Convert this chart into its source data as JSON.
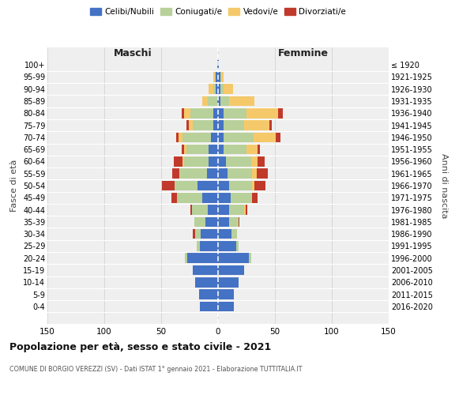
{
  "age_groups": [
    "0-4",
    "5-9",
    "10-14",
    "15-19",
    "20-24",
    "25-29",
    "30-34",
    "35-39",
    "40-44",
    "45-49",
    "50-54",
    "55-59",
    "60-64",
    "65-69",
    "70-74",
    "75-79",
    "80-84",
    "85-89",
    "90-94",
    "95-99",
    "100+"
  ],
  "birth_years": [
    "2016-2020",
    "2011-2015",
    "2006-2010",
    "2001-2005",
    "1996-2000",
    "1991-1995",
    "1986-1990",
    "1981-1985",
    "1976-1980",
    "1971-1975",
    "1966-1970",
    "1961-1965",
    "1956-1960",
    "1951-1955",
    "1946-1950",
    "1941-1945",
    "1936-1940",
    "1931-1935",
    "1926-1930",
    "1921-1925",
    "≤ 1920"
  ],
  "maschi": {
    "celibi": [
      16,
      17,
      20,
      22,
      27,
      16,
      15,
      11,
      9,
      14,
      18,
      10,
      8,
      8,
      6,
      4,
      4,
      1,
      2,
      2,
      1
    ],
    "coniugati": [
      0,
      0,
      0,
      0,
      2,
      3,
      5,
      10,
      14,
      22,
      20,
      23,
      22,
      20,
      25,
      18,
      20,
      8,
      2,
      1,
      0
    ],
    "vedovi": [
      0,
      0,
      0,
      0,
      0,
      0,
      0,
      0,
      0,
      0,
      0,
      1,
      1,
      2,
      4,
      4,
      6,
      5,
      4,
      1,
      0
    ],
    "divorziati": [
      0,
      0,
      0,
      0,
      0,
      0,
      2,
      0,
      1,
      5,
      11,
      6,
      8,
      2,
      2,
      2,
      2,
      0,
      0,
      0,
      0
    ]
  },
  "femmine": {
    "nubili": [
      14,
      14,
      18,
      23,
      27,
      16,
      12,
      10,
      10,
      11,
      10,
      8,
      7,
      5,
      5,
      5,
      5,
      2,
      2,
      2,
      1
    ],
    "coniugate": [
      0,
      0,
      0,
      0,
      2,
      2,
      5,
      8,
      13,
      18,
      20,
      22,
      22,
      20,
      26,
      18,
      20,
      8,
      3,
      1,
      0
    ],
    "vedove": [
      0,
      0,
      0,
      0,
      0,
      0,
      0,
      0,
      1,
      1,
      2,
      4,
      6,
      10,
      20,
      22,
      28,
      22,
      8,
      2,
      0
    ],
    "divorziate": [
      0,
      0,
      0,
      0,
      0,
      0,
      0,
      1,
      2,
      5,
      10,
      10,
      6,
      2,
      4,
      2,
      4,
      0,
      0,
      0,
      0
    ]
  },
  "colors": {
    "celibi": "#4472C4",
    "coniugati": "#b8d09a",
    "vedovi": "#f5c96a",
    "divorziati": "#c0392b"
  },
  "title": "Popolazione per età, sesso e stato civile - 2021",
  "subtitle": "COMUNE DI BORGIO VEREZZI (SV) - Dati ISTAT 1° gennaio 2021 - Elaborazione TUTTITALIA.IT",
  "xlabel_left": "Maschi",
  "xlabel_right": "Femmine",
  "ylabel_left": "Fasce di età",
  "ylabel_right": "Anni di nascita",
  "xlim": 150,
  "bg_color": "#ffffff",
  "plot_bg": "#efefef",
  "legend_labels": [
    "Celibi/Nubili",
    "Coniugati/e",
    "Vedovi/e",
    "Divorziati/e"
  ]
}
